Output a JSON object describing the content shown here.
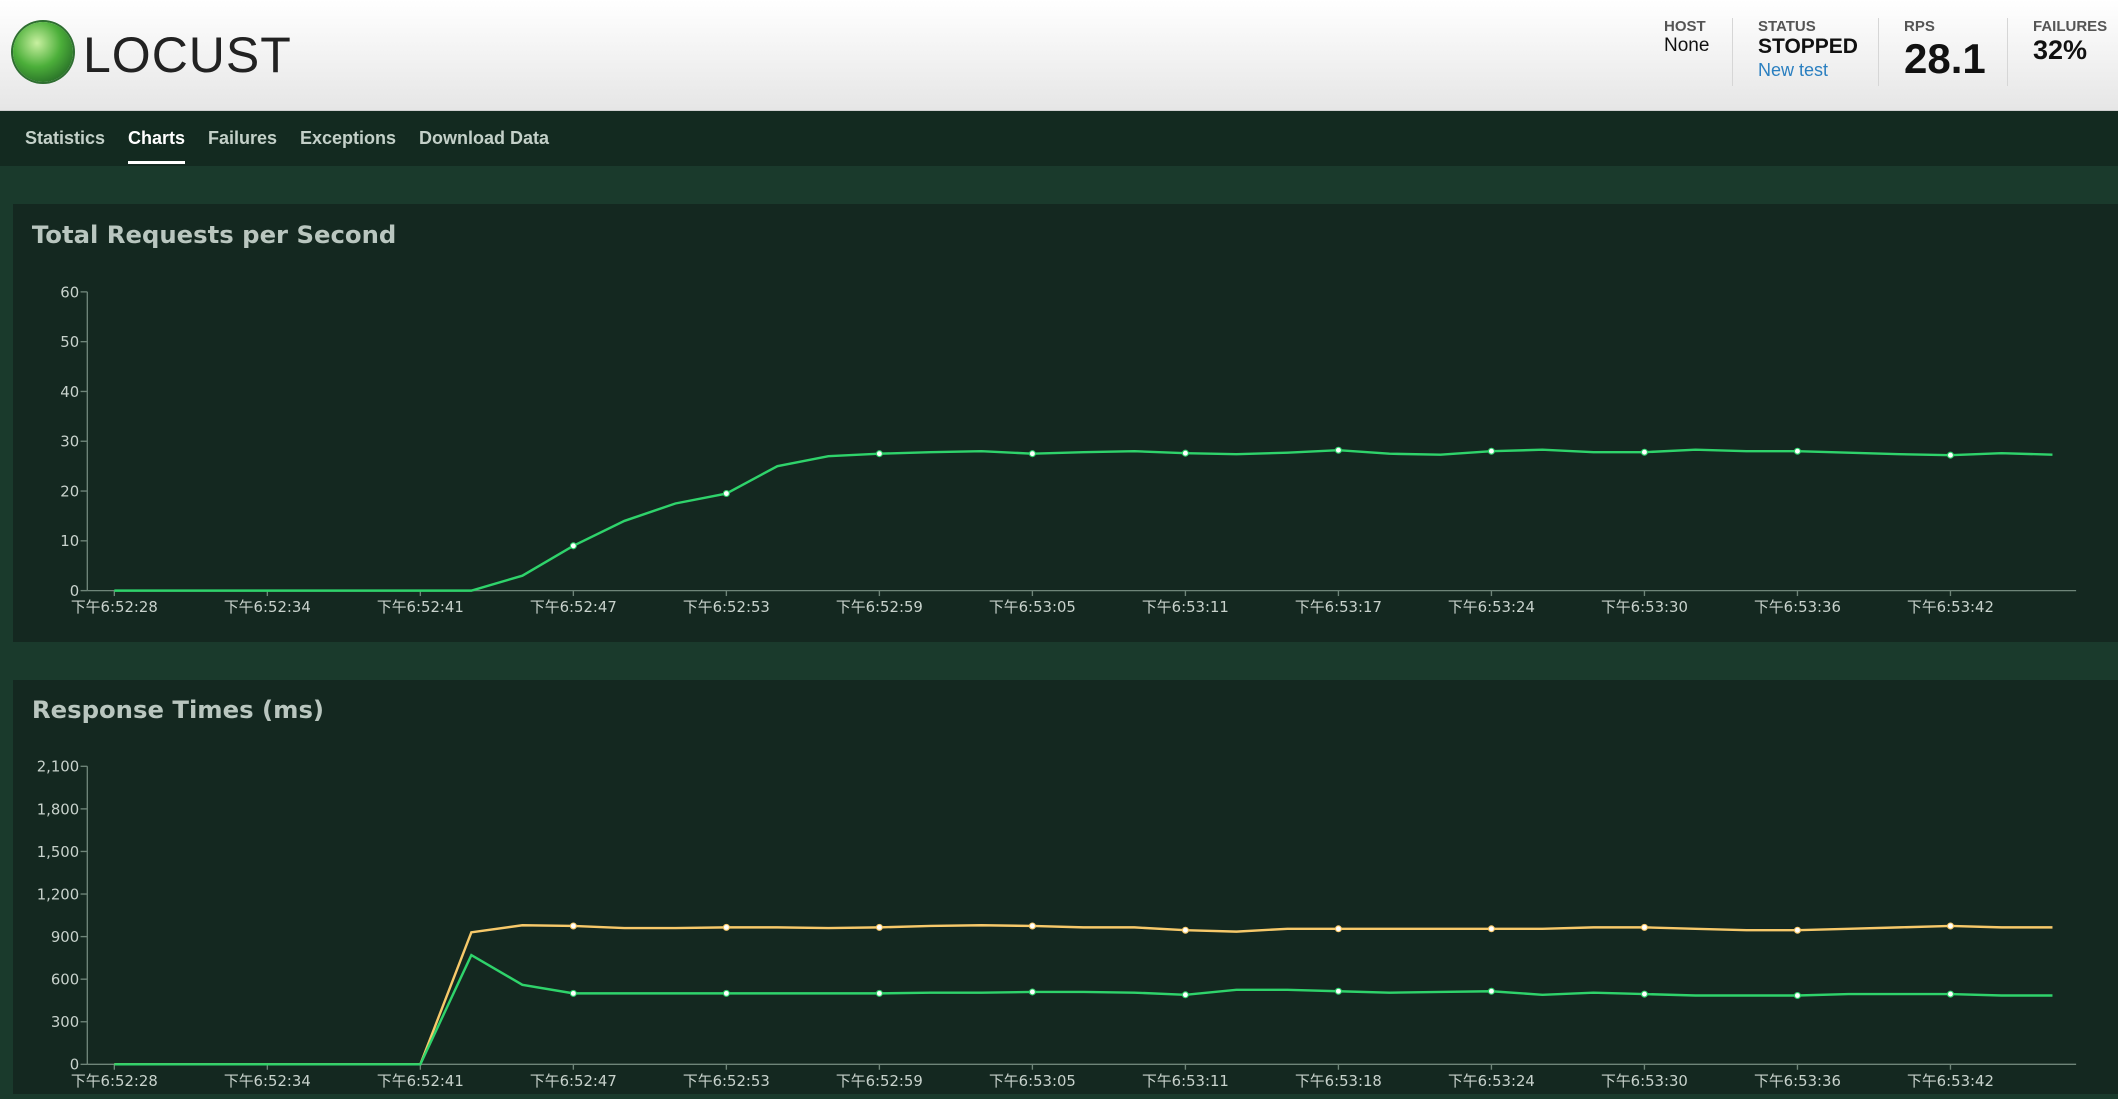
{
  "header": {
    "logo": "LOCUST",
    "stats": [
      {
        "label": "HOST",
        "value": "None"
      },
      {
        "label": "STATUS",
        "value": "STOPPED",
        "link": "New test"
      },
      {
        "label": "RPS",
        "value": "28.1"
      },
      {
        "label": "FAILURES",
        "value": "32%"
      }
    ]
  },
  "tabs": [
    "Statistics",
    "Charts",
    "Failures",
    "Exceptions",
    "Download Data"
  ],
  "active_tab": 1,
  "chart_data": [
    {
      "type": "line",
      "title": "Total Requests per Second",
      "categories": [
        "下午6:52:28",
        null,
        null,
        "下午6:52:34",
        null,
        null,
        "下午6:52:41",
        null,
        null,
        "下午6:52:47",
        null,
        null,
        "下午6:52:53",
        null,
        null,
        "下午6:52:59",
        null,
        null,
        "下午6:53:05",
        null,
        null,
        "下午6:53:11",
        null,
        null,
        "下午6:53:17",
        null,
        null,
        "下午6:53:24",
        null,
        null,
        "下午6:53:30",
        null,
        null,
        "下午6:53:36",
        null,
        null,
        "下午6:53:42",
        null,
        null
      ],
      "series": [
        {
          "color": "#2fd36b",
          "values": [
            0,
            0,
            0,
            0,
            0,
            0,
            0,
            0,
            3,
            9,
            14,
            17.5,
            19.5,
            25,
            27,
            27.5,
            27.8,
            28,
            27.5,
            27.8,
            28,
            27.6,
            27.4,
            27.7,
            28.2,
            27.5,
            27.3,
            28,
            28.3,
            27.8,
            27.8,
            28.3,
            28,
            28,
            27.7,
            27.4,
            27.2,
            27.6,
            27.3
          ]
        }
      ],
      "ylim": [
        0,
        60
      ],
      "yticks": [
        0,
        10,
        20,
        30,
        40,
        50,
        60
      ]
    },
    {
      "type": "line",
      "title": "Response Times (ms)",
      "categories": [
        "下午6:52:28",
        null,
        null,
        "下午6:52:34",
        null,
        null,
        "下午6:52:41",
        null,
        null,
        "下午6:52:47",
        null,
        null,
        "下午6:52:53",
        null,
        null,
        "下午6:52:59",
        null,
        null,
        "下午6:53:05",
        null,
        null,
        "下午6:53:11",
        null,
        null,
        "下午6:53:18",
        null,
        null,
        "下午6:53:24",
        null,
        null,
        "下午6:53:30",
        null,
        null,
        "下午6:53:36",
        null,
        null,
        "下午6:53:42",
        null,
        null
      ],
      "series": [
        {
          "color": "#f7c96a",
          "values": [
            0,
            0,
            0,
            0,
            0,
            0,
            0,
            930,
            980,
            975,
            960,
            960,
            965,
            965,
            960,
            965,
            975,
            980,
            975,
            965,
            965,
            945,
            935,
            955,
            955,
            955,
            955,
            955,
            955,
            965,
            965,
            955,
            945,
            945,
            955,
            965,
            975,
            965,
            965
          ]
        },
        {
          "color": "#2fd36b",
          "values": [
            0,
            0,
            0,
            0,
            0,
            0,
            0,
            770,
            560,
            500,
            500,
            500,
            500,
            500,
            500,
            500,
            505,
            505,
            510,
            510,
            505,
            490,
            525,
            525,
            515,
            505,
            510,
            515,
            490,
            505,
            495,
            485,
            485,
            485,
            495,
            495,
            495,
            485,
            485
          ]
        }
      ],
      "ylim": [
        0,
        2100
      ],
      "yticks": [
        0,
        300,
        600,
        900,
        {
          "value": 1200,
          "label": "1,200"
        },
        {
          "value": 1500,
          "label": "1,500"
        },
        {
          "value": 1800,
          "label": "1,800"
        },
        {
          "value": 2100,
          "label": "2,100"
        }
      ]
    }
  ]
}
